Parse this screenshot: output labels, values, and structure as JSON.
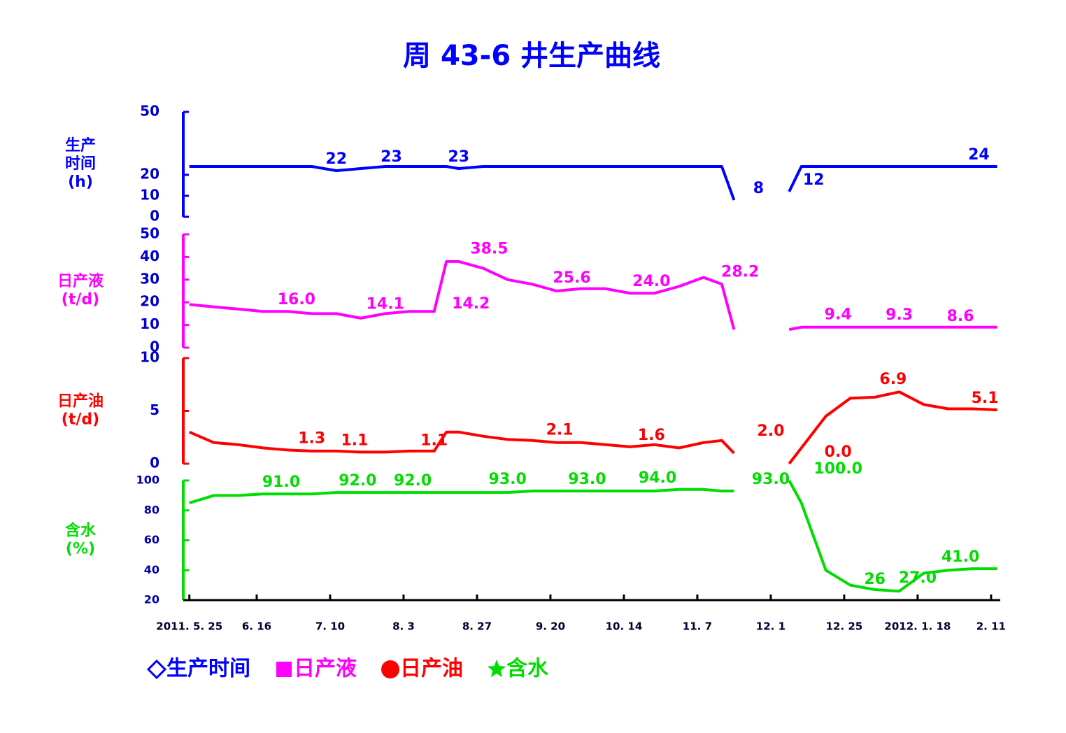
{
  "title": "周 43-6 井生产曲线",
  "chart_data": {
    "type": "line",
    "x": [
      0,
      8,
      16,
      24,
      32,
      40,
      48,
      56,
      64,
      72,
      80,
      84,
      88,
      96,
      104,
      112,
      120,
      128,
      136,
      144,
      152,
      160,
      168,
      174,
      178,
      184,
      190,
      196,
      200,
      208,
      216,
      224,
      232,
      240,
      248,
      256,
      264
    ],
    "xlim": [
      -2,
      265
    ],
    "xticks": [
      {
        "value": 0,
        "label": "2011. 5. 25"
      },
      {
        "value": 22,
        "label": "6. 16"
      },
      {
        "value": 46,
        "label": "7. 10"
      },
      {
        "value": 70,
        "label": "8. 3"
      },
      {
        "value": 94,
        "label": "8. 27"
      },
      {
        "value": 118,
        "label": "9. 20"
      },
      {
        "value": 142,
        "label": "10. 14"
      },
      {
        "value": 166,
        "label": "11. 7"
      },
      {
        "value": 190,
        "label": "12. 1"
      },
      {
        "value": 214,
        "label": "12. 25"
      },
      {
        "value": 238,
        "label": "2012. 1. 18"
      },
      {
        "value": 262,
        "label": "2. 11"
      }
    ],
    "panels": [
      {
        "ylabel_lines": [
          "生产",
          "时间",
          "(h)"
        ],
        "ylim": [
          0,
          50
        ],
        "yticks": [
          0,
          10,
          20,
          50
        ],
        "series": [
          {
            "name": "生产时间",
            "color": "#0000ff",
            "marker": "diamond",
            "values": [
              24,
              24,
              24,
              24,
              24,
              24,
              22,
              23,
              24,
              24,
              24,
              24,
              23,
              24,
              24,
              24,
              24,
              24,
              24,
              24,
              24,
              24,
              24,
              24,
              8,
              null,
              null,
              12,
              24,
              24,
              24,
              24,
              24,
              24,
              24,
              24,
              24
            ]
          }
        ],
        "annotations": [
          {
            "x": 48,
            "value": 22,
            "label": "22"
          },
          {
            "x": 66,
            "value": 23,
            "label": "23"
          },
          {
            "x": 88,
            "value": 23,
            "label": "23"
          },
          {
            "x": 186,
            "value": 8,
            "label": "8"
          },
          {
            "x": 204,
            "value": 12,
            "label": "12"
          },
          {
            "x": 258,
            "value": 24,
            "label": "24"
          }
        ]
      },
      {
        "ylabel_lines": [
          "日产液",
          "(t/d)"
        ],
        "ylim": [
          0,
          50
        ],
        "yticks": [
          0,
          10,
          20,
          30,
          40,
          50
        ],
        "series": [
          {
            "name": "日产液",
            "color": "#ff00ff",
            "marker": "square",
            "values": [
              19,
              18,
              17,
              16,
              16,
              15,
              15,
              13,
              15,
              16,
              16,
              38,
              38,
              35,
              30,
              28,
              25,
              26,
              26,
              24,
              24,
              27,
              31,
              28,
              8,
              null,
              null,
              8,
              9,
              9,
              9,
              9,
              9,
              9,
              9,
              9,
              9
            ]
          }
        ],
        "annotations": [
          {
            "x": 35,
            "value": 16.0,
            "label": "16.0"
          },
          {
            "x": 64,
            "value": 14.1,
            "label": "14.1"
          },
          {
            "x": 98,
            "value": 38.5,
            "label": "38.5"
          },
          {
            "x": 92,
            "value": 14.2,
            "label": "14.2"
          },
          {
            "x": 125,
            "value": 25.6,
            "label": "25.6"
          },
          {
            "x": 151,
            "value": 24.0,
            "label": "24.0"
          },
          {
            "x": 180,
            "value": 28.2,
            "label": "28.2"
          },
          {
            "x": 212,
            "value": 9.4,
            "label": "9.4"
          },
          {
            "x": 232,
            "value": 9.3,
            "label": "9.3"
          },
          {
            "x": 252,
            "value": 8.6,
            "label": "8.6"
          }
        ]
      },
      {
        "ylabel_lines": [
          "日产油",
          "(t/d)"
        ],
        "ylim": [
          0,
          10
        ],
        "yticks": [
          0,
          5,
          10
        ],
        "series": [
          {
            "name": "日产油",
            "color": "#ff0000",
            "marker": "circle",
            "values": [
              3,
              2,
              1.8,
              1.5,
              1.3,
              1.2,
              1.2,
              1.1,
              1.1,
              1.2,
              1.2,
              3,
              3,
              2.6,
              2.3,
              2.2,
              2.0,
              2.0,
              1.8,
              1.6,
              1.8,
              1.5,
              2.0,
              2.2,
              1.0,
              null,
              null,
              0,
              1.5,
              4.5,
              6.2,
              6.3,
              6.8,
              5.6,
              5.2,
              5.2,
              5.1
            ]
          }
        ],
        "annotations": [
          {
            "x": 40,
            "value": 1.3,
            "label": "1.3"
          },
          {
            "x": 54,
            "value": 1.1,
            "label": "1.1"
          },
          {
            "x": 80,
            "value": 1.1,
            "label": "1.1"
          },
          {
            "x": 121,
            "value": 2.1,
            "label": "2.1"
          },
          {
            "x": 151,
            "value": 1.6,
            "label": "1.6"
          },
          {
            "x": 190,
            "value": 2.0,
            "label": "2.0"
          },
          {
            "x": 212,
            "value": 0.0,
            "label": "0.0"
          },
          {
            "x": 230,
            "value": 6.9,
            "label": "6.9"
          },
          {
            "x": 260,
            "value": 5.1,
            "label": "5.1"
          }
        ]
      },
      {
        "ylabel_lines": [
          "含水",
          "(%)"
        ],
        "ylim": [
          20,
          100
        ],
        "yticks": [
          20,
          40,
          60,
          80,
          100
        ],
        "series": [
          {
            "name": "含水",
            "color": "#00dd00",
            "marker": "star",
            "values": [
              85,
              90,
              90,
              91,
              91,
              91,
              92,
              92,
              92,
              92,
              92,
              92,
              92,
              92,
              92,
              93,
              93,
              93,
              93,
              93,
              93,
              94,
              94,
              93,
              93,
              null,
              null,
              100,
              85,
              40,
              30,
              27,
              26,
              38,
              40,
              41,
              41
            ]
          }
        ],
        "annotations": [
          {
            "x": 30,
            "value": 91.0,
            "label": "91.0"
          },
          {
            "x": 55,
            "value": 92.0,
            "label": "92.0"
          },
          {
            "x": 73,
            "value": 92.0,
            "label": "92.0"
          },
          {
            "x": 104,
            "value": 93.0,
            "label": "93.0"
          },
          {
            "x": 130,
            "value": 93.0,
            "label": "93.0"
          },
          {
            "x": 153,
            "value": 94.0,
            "label": "94.0"
          },
          {
            "x": 190,
            "value": 93.0,
            "label": "93.0"
          },
          {
            "x": 212,
            "value": 100.0,
            "label": "100.0"
          },
          {
            "x": 224,
            "value": 26,
            "label": "26"
          },
          {
            "x": 238,
            "value": 27.0,
            "label": "27.0"
          },
          {
            "x": 252,
            "value": 41.0,
            "label": "41.0"
          }
        ]
      }
    ]
  }
}
